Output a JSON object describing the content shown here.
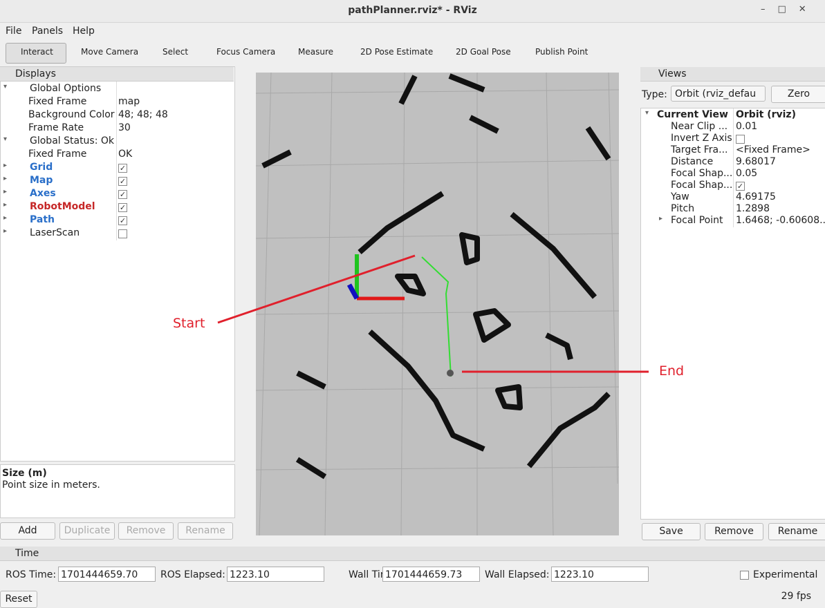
{
  "window": {
    "title": "pathPlanner.rviz* - RViz"
  },
  "menu": [
    "File",
    "Panels",
    "Help"
  ],
  "toolbar": [
    "Interact",
    "Move Camera",
    "Select",
    "Focus Camera",
    "Measure",
    "2D Pose Estimate",
    "2D Goal Pose",
    "Publish Point"
  ],
  "displays": {
    "title": "Displays",
    "rows": [
      {
        "name": "Global Options",
        "level": 0,
        "expanded": true
      },
      {
        "name": "Fixed Frame",
        "level": 1,
        "value": "map"
      },
      {
        "name": "Background Color",
        "level": 1,
        "value": "48; 48; 48"
      },
      {
        "name": "Frame Rate",
        "level": 1,
        "value": "30"
      },
      {
        "name": "Global Status: Ok",
        "level": 0,
        "expanded": true
      },
      {
        "name": "Fixed Frame",
        "level": 1,
        "value": "OK"
      },
      {
        "name": "Grid",
        "level": 0,
        "checked": true,
        "color": "#2a6fc9"
      },
      {
        "name": "Map",
        "level": 0,
        "checked": true,
        "color": "#2a6fc9"
      },
      {
        "name": "Axes",
        "level": 0,
        "checked": true,
        "color": "#2a6fc9"
      },
      {
        "name": "RobotModel",
        "level": 0,
        "checked": true,
        "color": "#c62828"
      },
      {
        "name": "Path",
        "level": 0,
        "checked": true,
        "color": "#2a6fc9"
      },
      {
        "name": "LaserScan",
        "level": 0,
        "checked": false
      }
    ]
  },
  "description": {
    "title": "Size (m)",
    "text": "Point size in meters."
  },
  "display_buttons": [
    "Add",
    "Duplicate",
    "Remove",
    "Rename"
  ],
  "views": {
    "title": "Views",
    "type_label": "Type:",
    "type_value": "Orbit (rviz_defau",
    "zero": "Zero",
    "rows": [
      {
        "name": "Current View",
        "value": "Orbit (rviz)",
        "level": 0
      },
      {
        "name": "Near Clip ...",
        "value": "0.01",
        "level": 1
      },
      {
        "name": "Invert Z Axis",
        "checked": false,
        "level": 1
      },
      {
        "name": "Target Fra...",
        "value": "<Fixed Frame>",
        "level": 1
      },
      {
        "name": "Distance",
        "value": "9.68017",
        "level": 1
      },
      {
        "name": "Focal Shap...",
        "value": "0.05",
        "level": 1
      },
      {
        "name": "Focal Shap...",
        "checked": true,
        "level": 1
      },
      {
        "name": "Yaw",
        "value": "4.69175",
        "level": 1
      },
      {
        "name": "Pitch",
        "value": "1.2898",
        "level": 1
      },
      {
        "name": "Focal Point",
        "value": "1.6468; -0.60608...",
        "level": 1
      }
    ],
    "buttons": [
      "Save",
      "Remove",
      "Rename"
    ]
  },
  "annotations": [
    "Start",
    "End"
  ],
  "time": {
    "title": "Time",
    "fields": [
      {
        "label": "ROS Time:",
        "value": "1701444659.70"
      },
      {
        "label": "ROS Elapsed:",
        "value": "1223.10"
      },
      {
        "label": "Wall Time:",
        "value": "1701444659.73"
      },
      {
        "label": "Wall Elapsed:",
        "value": "1223.10"
      }
    ],
    "experimental": "Experimental",
    "reset": "Reset",
    "fps": "29 fps"
  }
}
